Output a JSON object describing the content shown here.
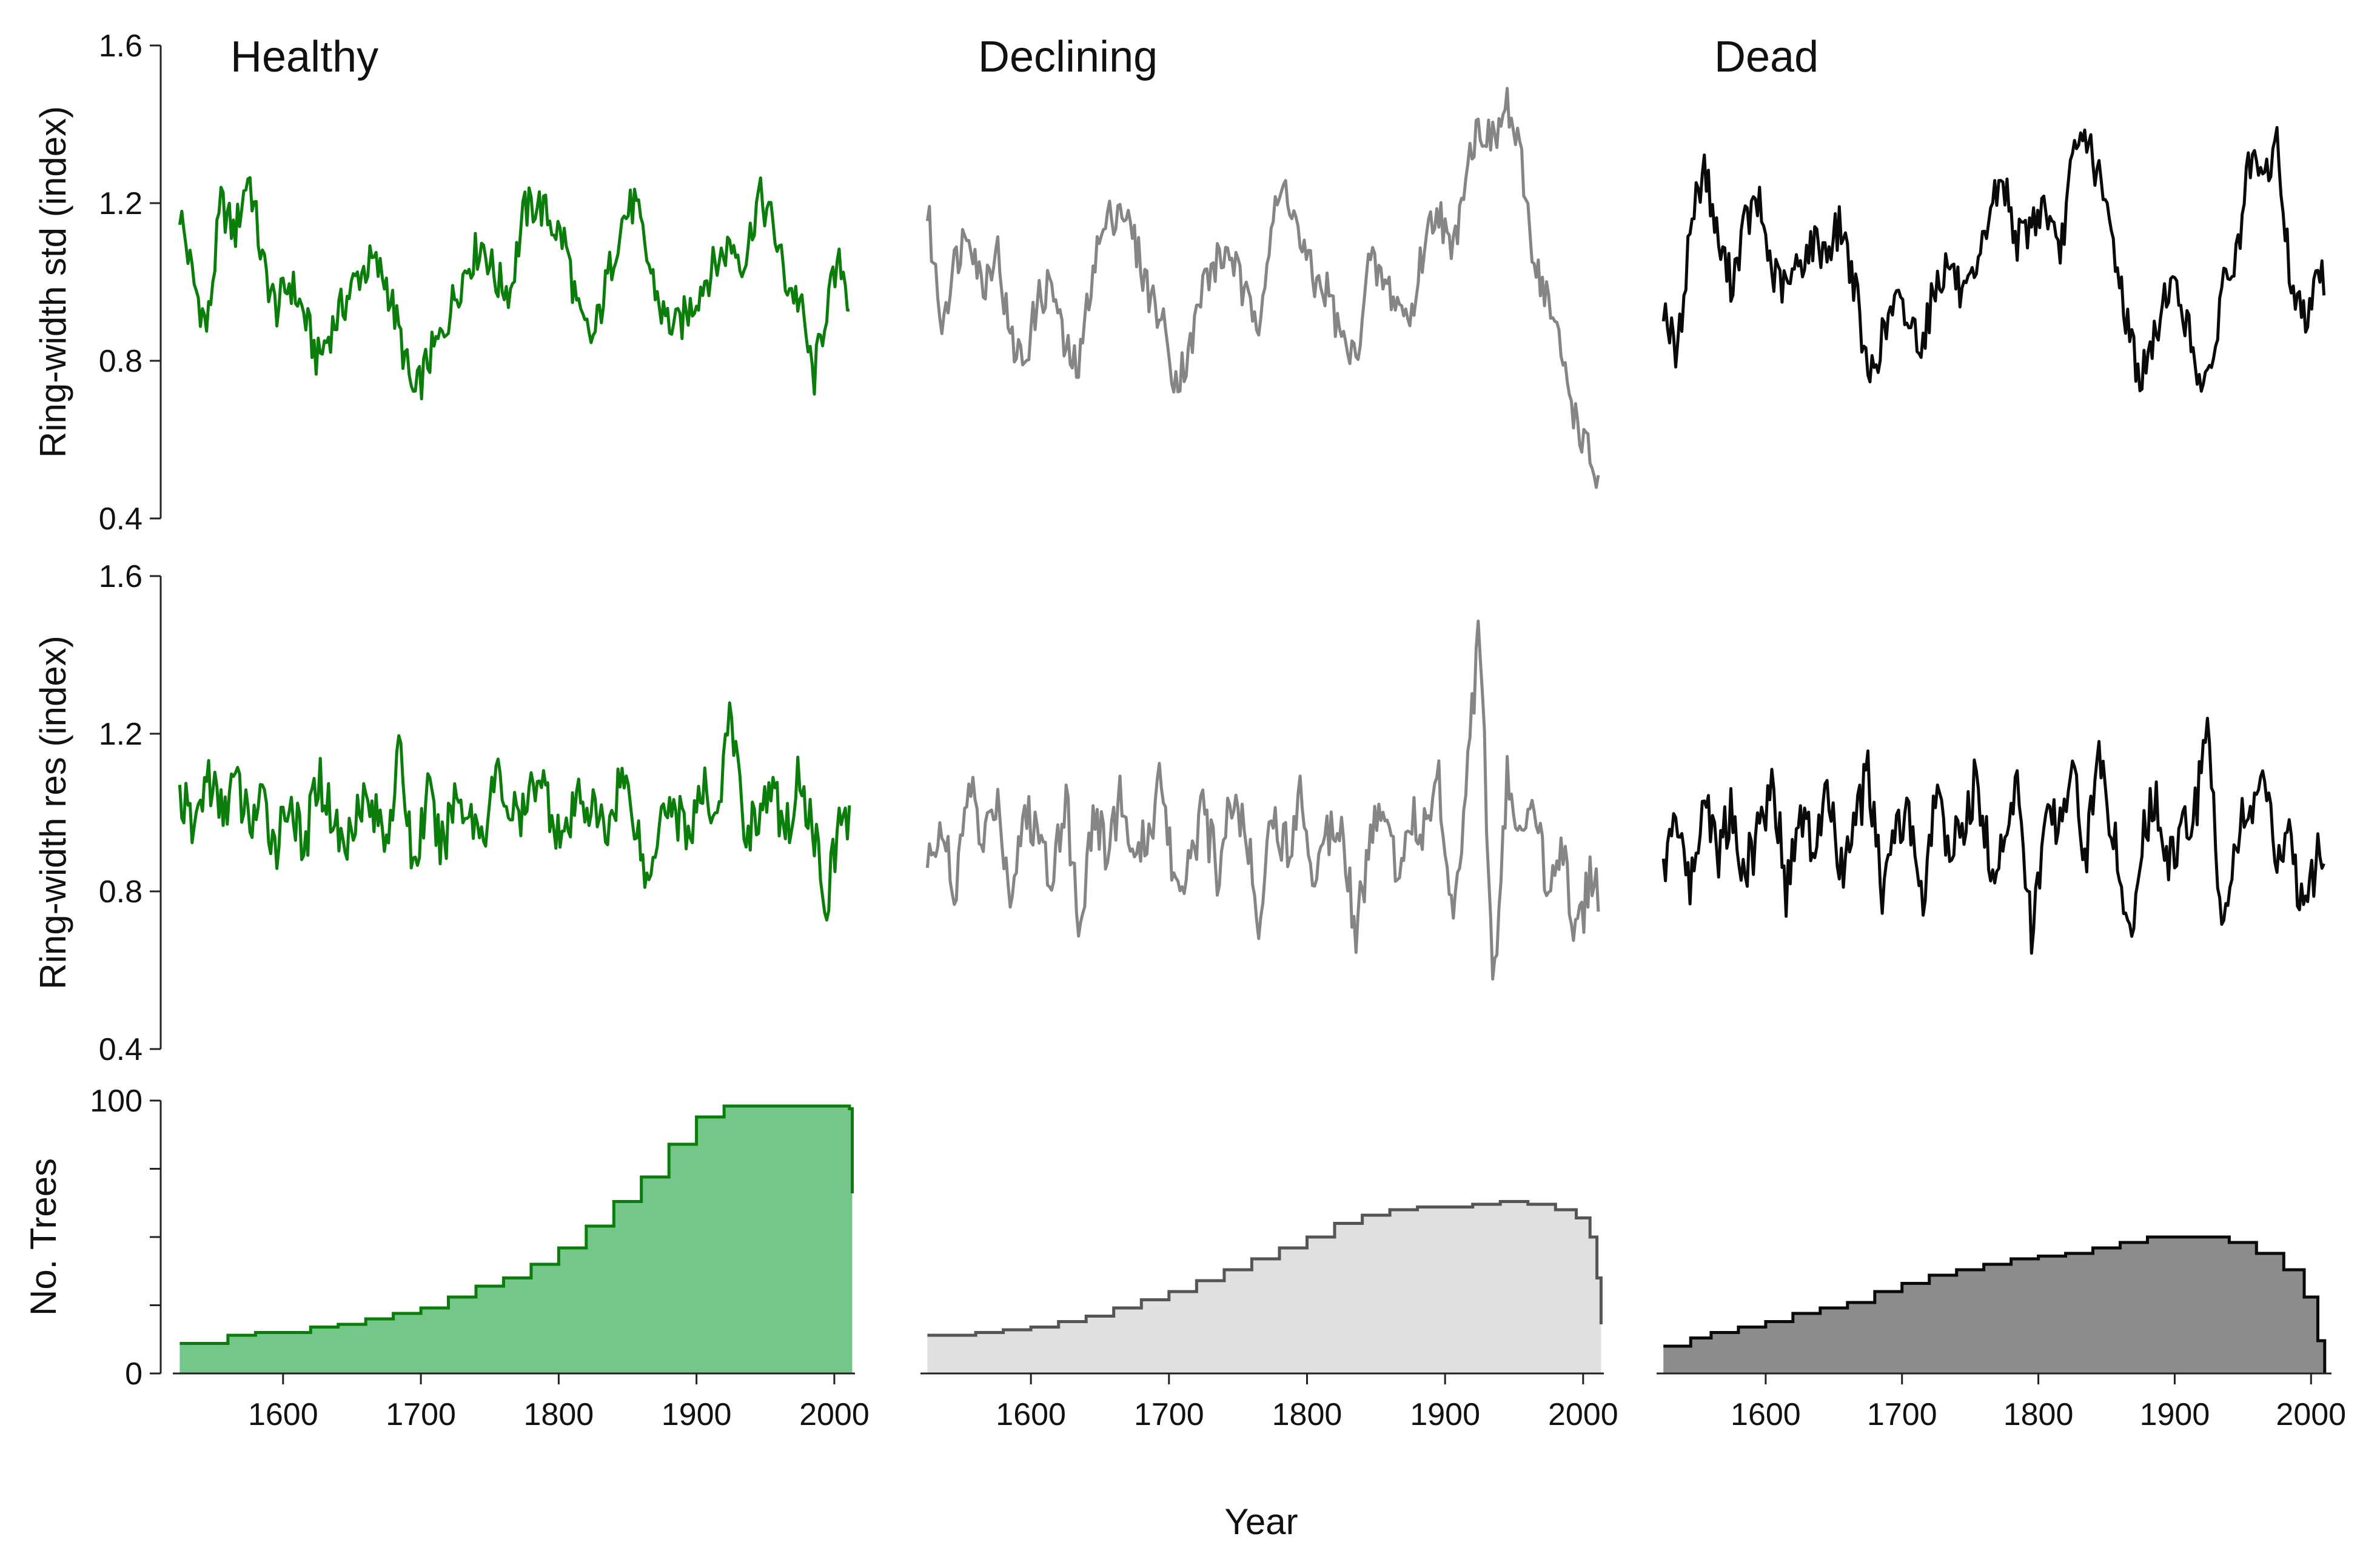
{
  "figure": {
    "xlabel": "Year",
    "ylabels": [
      "Ring-width std (index)",
      "Ring-width res (index)",
      "No. Trees"
    ],
    "column_titles": [
      "Healthy",
      "Declining",
      "Dead"
    ],
    "colors": {
      "healthy_line": "#0a7d0a",
      "healthy_fill": "#74c68a",
      "declining_line": "#858585",
      "declining_count_line": "#555555",
      "declining_fill": "#e0e0e0",
      "dead_line": "#0a0a0a",
      "dead_fill": "#8c8c8c"
    }
  },
  "chart_data": [
    {
      "type": "line",
      "row": "std",
      "column": "Healthy",
      "title": "Healthy",
      "ylabel": "Ring-width std (index)",
      "ylim": [
        0.4,
        1.6
      ],
      "yticks": [
        0.4,
        0.8,
        1.2,
        1.6
      ],
      "xlim": [
        1520,
        2015
      ],
      "x": [
        1525,
        1535,
        1545,
        1555,
        1565,
        1575,
        1585,
        1595,
        1605,
        1615,
        1625,
        1635,
        1645,
        1655,
        1665,
        1675,
        1685,
        1695,
        1705,
        1715,
        1725,
        1735,
        1745,
        1755,
        1765,
        1775,
        1785,
        1795,
        1805,
        1815,
        1825,
        1835,
        1845,
        1855,
        1865,
        1875,
        1885,
        1895,
        1905,
        1915,
        1925,
        1935,
        1945,
        1955,
        1965,
        1975,
        1985,
        1995,
        2005,
        2012
      ],
      "series": [
        {
          "values": [
            1.18,
            1.0,
            0.88,
            1.2,
            1.12,
            1.28,
            1.05,
            0.93,
            1.0,
            0.92,
            0.8,
            0.88,
            0.95,
            1.02,
            1.05,
            1.0,
            0.86,
            0.7,
            0.8,
            0.86,
            0.97,
            1.05,
            1.1,
            1.0,
            0.98,
            1.18,
            1.2,
            1.15,
            1.1,
            0.9,
            0.85,
            1.0,
            1.15,
            1.2,
            1.05,
            0.92,
            0.88,
            0.93,
            1.0,
            1.05,
            1.1,
            1.05,
            1.22,
            1.15,
            1.0,
            0.95,
            0.75,
            0.95,
            1.05,
            0.93
          ]
        }
      ]
    },
    {
      "type": "line",
      "row": "std",
      "column": "Declining",
      "title": "Declining",
      "xlim": [
        1520,
        2015
      ],
      "x": [
        1525,
        1535,
        1545,
        1555,
        1565,
        1575,
        1585,
        1595,
        1605,
        1615,
        1625,
        1635,
        1645,
        1655,
        1665,
        1675,
        1685,
        1695,
        1705,
        1715,
        1725,
        1735,
        1745,
        1755,
        1765,
        1775,
        1785,
        1795,
        1805,
        1815,
        1825,
        1835,
        1845,
        1855,
        1865,
        1875,
        1885,
        1895,
        1905,
        1915,
        1925,
        1935,
        1945,
        1955,
        1965,
        1975,
        1985,
        1995,
        2005,
        2012
      ],
      "series": [
        {
          "values": [
            1.18,
            0.9,
            1.05,
            1.15,
            0.98,
            1.1,
            0.85,
            0.8,
            0.95,
            1.0,
            0.82,
            0.78,
            1.05,
            1.15,
            1.2,
            1.1,
            0.98,
            0.9,
            0.75,
            0.82,
            1.0,
            1.05,
            1.08,
            0.95,
            0.92,
            1.15,
            1.25,
            1.1,
            1.0,
            0.98,
            0.85,
            0.8,
            1.05,
            1.0,
            0.95,
            0.9,
            1.1,
            1.2,
            1.05,
            1.3,
            1.4,
            1.35,
            1.45,
            1.3,
            1.05,
            0.95,
            0.8,
            0.65,
            0.55,
            0.48
          ]
        }
      ]
    },
    {
      "type": "line",
      "row": "std",
      "column": "Dead",
      "title": "Dead",
      "xlim": [
        1520,
        2015
      ],
      "x": [
        1525,
        1535,
        1545,
        1555,
        1565,
        1575,
        1585,
        1595,
        1605,
        1615,
        1625,
        1635,
        1645,
        1655,
        1665,
        1675,
        1685,
        1695,
        1705,
        1715,
        1725,
        1735,
        1745,
        1755,
        1765,
        1775,
        1785,
        1795,
        1805,
        1815,
        1825,
        1835,
        1845,
        1855,
        1865,
        1875,
        1885,
        1895,
        1905,
        1915,
        1925,
        1935,
        1945,
        1955,
        1965,
        1975,
        1985,
        1995,
        2005,
        2010
      ],
      "series": [
        {
          "values": [
            0.95,
            0.8,
            1.15,
            1.3,
            1.1,
            1.0,
            1.15,
            1.2,
            1.02,
            0.98,
            1.05,
            1.1,
            1.08,
            1.15,
            1.0,
            0.75,
            0.85,
            0.95,
            0.9,
            0.85,
            1.0,
            1.05,
            0.95,
            1.0,
            1.2,
            1.25,
            1.1,
            1.15,
            1.2,
            1.05,
            1.3,
            1.38,
            1.25,
            1.1,
            0.9,
            0.75,
            0.85,
            1.0,
            0.95,
            0.8,
            0.72,
            1.0,
            1.05,
            1.3,
            1.25,
            1.35,
            1.0,
            0.9,
            1.05,
            1.0
          ]
        }
      ]
    },
    {
      "type": "line",
      "row": "res",
      "column": "Healthy",
      "ylabel": "Ring-width res (index)",
      "ylim": [
        0.4,
        1.6
      ],
      "yticks": [
        0.4,
        0.8,
        1.2,
        1.6
      ],
      "xlim": [
        1520,
        2015
      ],
      "x": [
        1525,
        1535,
        1545,
        1555,
        1565,
        1575,
        1585,
        1595,
        1605,
        1615,
        1625,
        1635,
        1645,
        1655,
        1665,
        1675,
        1685,
        1695,
        1705,
        1715,
        1725,
        1735,
        1745,
        1755,
        1765,
        1775,
        1785,
        1795,
        1805,
        1815,
        1825,
        1835,
        1845,
        1855,
        1865,
        1875,
        1885,
        1895,
        1905,
        1915,
        1925,
        1935,
        1945,
        1955,
        1965,
        1975,
        1985,
        1995,
        2005,
        2012
      ],
      "series": [
        {
          "values": [
            1.05,
            0.95,
            1.1,
            1.0,
            1.08,
            0.98,
            1.02,
            0.92,
            1.05,
            0.88,
            1.1,
            1.0,
            0.9,
            1.05,
            1.0,
            0.95,
            1.15,
            0.85,
            1.05,
            0.9,
            1.05,
            1.0,
            0.95,
            1.1,
            1.0,
            0.98,
            1.12,
            1.0,
            0.92,
            1.05,
            1.0,
            0.95,
            1.1,
            1.0,
            0.8,
            1.05,
            1.0,
            0.95,
            1.05,
            1.0,
            1.25,
            0.95,
            1.0,
            1.05,
            0.95,
            1.1,
            0.95,
            0.78,
            1.0,
            0.98
          ]
        }
      ]
    },
    {
      "type": "line",
      "row": "res",
      "column": "Declining",
      "xlim": [
        1520,
        2015
      ],
      "x": [
        1525,
        1535,
        1545,
        1555,
        1565,
        1575,
        1585,
        1595,
        1605,
        1615,
        1625,
        1635,
        1645,
        1655,
        1665,
        1675,
        1685,
        1695,
        1705,
        1715,
        1725,
        1735,
        1745,
        1755,
        1765,
        1775,
        1785,
        1795,
        1805,
        1815,
        1825,
        1835,
        1845,
        1855,
        1865,
        1875,
        1885,
        1895,
        1905,
        1915,
        1925,
        1935,
        1945,
        1955,
        1965,
        1975,
        1985,
        1995,
        2005,
        2012
      ],
      "series": [
        {
          "values": [
            0.85,
            1.0,
            0.75,
            1.1,
            0.9,
            1.05,
            0.8,
            1.0,
            0.95,
            0.85,
            1.05,
            0.7,
            1.0,
            0.9,
            1.05,
            0.85,
            0.95,
            1.1,
            0.8,
            0.9,
            1.0,
            0.85,
            1.05,
            0.95,
            0.75,
            1.0,
            0.9,
            1.05,
            0.85,
            0.95,
            1.0,
            0.7,
            0.9,
            1.05,
            0.85,
            1.0,
            0.95,
            1.1,
            0.75,
            1.05,
            1.5,
            0.5,
            1.1,
            0.9,
            1.0,
            0.8,
            0.95,
            0.65,
            0.85,
            0.8
          ]
        }
      ]
    },
    {
      "type": "line",
      "row": "res",
      "column": "Dead",
      "xlim": [
        1520,
        2015
      ],
      "x": [
        1525,
        1535,
        1545,
        1555,
        1565,
        1575,
        1585,
        1595,
        1605,
        1615,
        1625,
        1635,
        1645,
        1655,
        1665,
        1675,
        1685,
        1695,
        1705,
        1715,
        1725,
        1735,
        1745,
        1755,
        1765,
        1775,
        1785,
        1795,
        1805,
        1815,
        1825,
        1835,
        1845,
        1855,
        1865,
        1875,
        1885,
        1895,
        1905,
        1915,
        1925,
        1935,
        1945,
        1955,
        1965,
        1975,
        1985,
        1995,
        2005,
        2010
      ],
      "series": [
        {
          "values": [
            0.85,
            1.0,
            0.8,
            1.05,
            0.9,
            1.0,
            0.85,
            0.95,
            1.1,
            0.8,
            1.0,
            0.9,
            1.05,
            0.85,
            0.95,
            1.1,
            0.8,
            0.95,
            1.0,
            0.75,
            1.05,
            0.9,
            0.95,
            1.1,
            0.85,
            0.95,
            1.05,
            0.7,
            0.95,
            1.0,
            1.1,
            0.9,
            1.15,
            0.95,
            0.65,
            0.9,
            1.05,
            0.85,
            0.95,
            1.0,
            1.2,
            0.7,
            0.95,
            1.0,
            1.1,
            0.85,
            0.95,
            0.7,
            0.9,
            0.85
          ]
        }
      ]
    },
    {
      "type": "area",
      "row": "trees",
      "column": "Healthy",
      "ylabel": "No. Trees",
      "ylim": [
        0,
        100
      ],
      "yticks": [
        0,
        100
      ],
      "xlim": [
        1520,
        2015
      ],
      "xticks": [
        1600,
        1700,
        1800,
        1900,
        2000
      ],
      "x": [
        1525,
        1545,
        1560,
        1580,
        1600,
        1620,
        1640,
        1660,
        1680,
        1700,
        1720,
        1740,
        1760,
        1780,
        1800,
        1820,
        1840,
        1860,
        1880,
        1900,
        1920,
        1940,
        1960,
        1980,
        2000,
        2011,
        2013
      ],
      "series": [
        {
          "values": [
            11,
            11,
            14,
            15,
            15,
            17,
            18,
            20,
            22,
            24,
            28,
            32,
            35,
            40,
            46,
            54,
            63,
            72,
            84,
            94,
            98,
            98,
            98,
            98,
            98,
            97,
            66
          ]
        }
      ]
    },
    {
      "type": "area",
      "row": "trees",
      "column": "Declining",
      "xlim": [
        1520,
        2015
      ],
      "xticks": [
        1600,
        1700,
        1800,
        1900,
        2000
      ],
      "x": [
        1525,
        1545,
        1560,
        1580,
        1600,
        1620,
        1640,
        1660,
        1680,
        1700,
        1720,
        1740,
        1760,
        1780,
        1800,
        1820,
        1840,
        1860,
        1880,
        1900,
        1920,
        1940,
        1960,
        1980,
        1995,
        2005,
        2010,
        2013
      ],
      "series": [
        {
          "values": [
            14,
            14,
            15,
            16,
            17,
            19,
            21,
            24,
            27,
            30,
            34,
            38,
            42,
            46,
            50,
            55,
            58,
            60,
            61,
            61,
            62,
            63,
            62,
            60,
            57,
            50,
            35,
            18
          ]
        }
      ]
    },
    {
      "type": "area",
      "row": "trees",
      "column": "Dead",
      "xlim": [
        1520,
        2015
      ],
      "xticks": [
        1600,
        1700,
        1800,
        1900,
        2000
      ],
      "x": [
        1525,
        1545,
        1560,
        1580,
        1600,
        1620,
        1640,
        1660,
        1680,
        1700,
        1720,
        1740,
        1760,
        1780,
        1800,
        1820,
        1840,
        1860,
        1880,
        1900,
        1920,
        1940,
        1960,
        1980,
        1995,
        2005,
        2010
      ],
      "series": [
        {
          "values": [
            10,
            13,
            15,
            17,
            19,
            22,
            24,
            26,
            30,
            33,
            36,
            38,
            40,
            42,
            43,
            44,
            46,
            48,
            50,
            50,
            50,
            48,
            44,
            38,
            28,
            12,
            0
          ]
        }
      ]
    }
  ]
}
